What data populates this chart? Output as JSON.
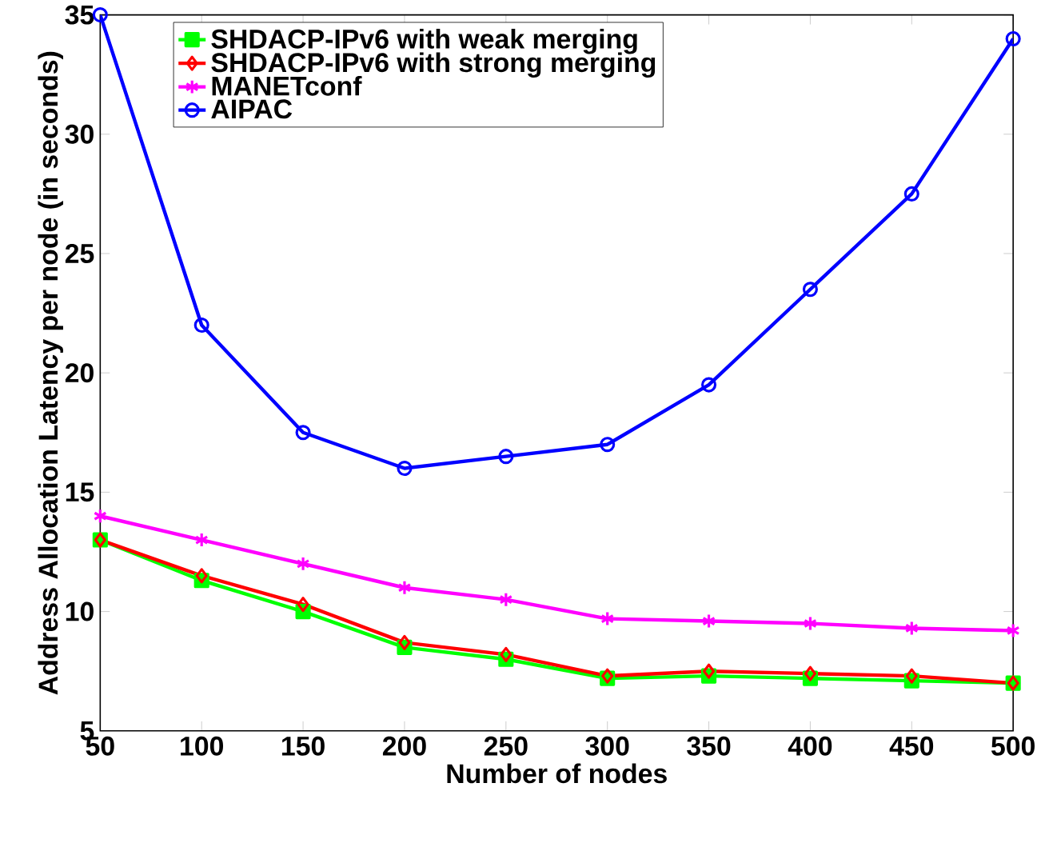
{
  "chart_data": {
    "type": "line",
    "xlabel": "Number of nodes",
    "ylabel": "Address Allocation Latency per node (in seconds)",
    "x": [
      50,
      100,
      150,
      200,
      250,
      300,
      350,
      400,
      450,
      500
    ],
    "series": [
      {
        "name": "SHDACP-IPv6 with weak merging",
        "color": "#00ff00",
        "marker": "square",
        "values": [
          13,
          11.3,
          10,
          8.5,
          8,
          7.2,
          7.3,
          7.2,
          7.1,
          7
        ]
      },
      {
        "name": "SHDACP-IPv6 with strong merging",
        "color": "#ff0000",
        "marker": "diamond",
        "values": [
          13,
          11.5,
          10.3,
          8.7,
          8.2,
          7.3,
          7.5,
          7.4,
          7.3,
          7
        ]
      },
      {
        "name": "MANETconf",
        "color": "#ff00ff",
        "marker": "cross",
        "values": [
          14,
          13,
          12,
          11,
          10.5,
          9.7,
          9.6,
          9.5,
          9.3,
          9.2
        ]
      },
      {
        "name": "AIPAC",
        "color": "#0000ff",
        "marker": "circle",
        "values": [
          35,
          22,
          17.5,
          16,
          16.5,
          17,
          19.5,
          23.5,
          27.5,
          34
        ]
      }
    ],
    "xlim": [
      50,
      500
    ],
    "ylim": [
      5,
      35
    ],
    "xticks": [
      50,
      100,
      150,
      200,
      250,
      300,
      350,
      400,
      450,
      500
    ],
    "yticks": [
      5,
      10,
      15,
      20,
      25,
      30,
      35
    ],
    "legend": "top left",
    "grid": false,
    "line_style": "solid"
  }
}
